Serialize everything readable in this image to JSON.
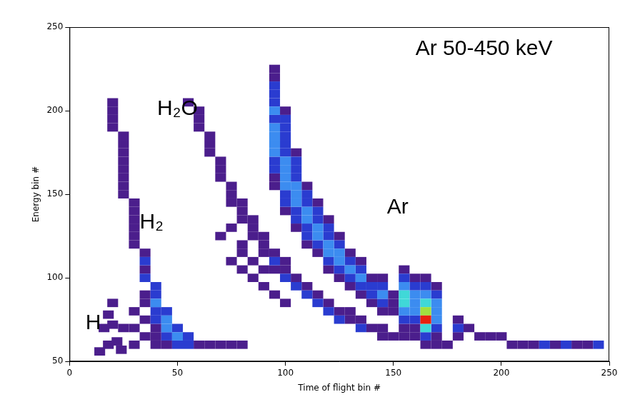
{
  "chart_data": {
    "type": "heatmap",
    "x_label": "Time of flight bin #",
    "y_label": "Energy bin #",
    "xlim": [
      0,
      250
    ],
    "xticks": [
      0,
      50,
      100,
      150,
      200,
      250
    ],
    "ylim": [
      50,
      250
    ],
    "yticks": [
      50,
      100,
      150,
      200,
      250
    ],
    "grid": false,
    "cell_size": [
      5,
      5
    ],
    "levels": [
      1,
      2,
      3,
      4,
      5,
      6
    ],
    "colors": [
      "#4b1e8c",
      "#2a3cd0",
      "#3c8cf0",
      "#40d8d8",
      "#a0e040",
      "#e82010"
    ],
    "annotations": [
      {
        "text": "H",
        "x": 11,
        "y": 73
      },
      {
        "text": "H₂",
        "x": 38,
        "y": 133
      },
      {
        "text": "H₂O",
        "x": 50,
        "y": 201
      },
      {
        "text": "Ar",
        "x": 152,
        "y": 142
      },
      {
        "text": "Ar 50-450 keV",
        "x": 192,
        "y": 237
      }
    ],
    "cells": [
      [
        20,
        85,
        1
      ],
      [
        18,
        78,
        1
      ],
      [
        16,
        70,
        1
      ],
      [
        20,
        72,
        1
      ],
      [
        22,
        62,
        1
      ],
      [
        18,
        60,
        1
      ],
      [
        14,
        56,
        1
      ],
      [
        24,
        57,
        1
      ],
      [
        20,
        205,
        1
      ],
      [
        20,
        200,
        1
      ],
      [
        20,
        195,
        1
      ],
      [
        20,
        190,
        1
      ],
      [
        25,
        185,
        1
      ],
      [
        25,
        180,
        1
      ],
      [
        25,
        175,
        1
      ],
      [
        25,
        170,
        1
      ],
      [
        25,
        165,
        1
      ],
      [
        25,
        160,
        1
      ],
      [
        25,
        155,
        1
      ],
      [
        25,
        150,
        1
      ],
      [
        30,
        145,
        1
      ],
      [
        30,
        140,
        1
      ],
      [
        30,
        135,
        1
      ],
      [
        30,
        130,
        1
      ],
      [
        30,
        125,
        1
      ],
      [
        30,
        120,
        1
      ],
      [
        35,
        115,
        1
      ],
      [
        35,
        110,
        2
      ],
      [
        35,
        105,
        1
      ],
      [
        35,
        100,
        2
      ],
      [
        40,
        95,
        2
      ],
      [
        40,
        90,
        2
      ],
      [
        40,
        85,
        3
      ],
      [
        45,
        80,
        2
      ],
      [
        45,
        75,
        3
      ],
      [
        50,
        70,
        2
      ],
      [
        50,
        65,
        3
      ],
      [
        55,
        65,
        2
      ],
      [
        55,
        60,
        2
      ],
      [
        60,
        60,
        1
      ],
      [
        65,
        60,
        1
      ],
      [
        70,
        60,
        1
      ],
      [
        75,
        60,
        1
      ],
      [
        80,
        60,
        1
      ],
      [
        35,
        90,
        1
      ],
      [
        35,
        85,
        1
      ],
      [
        40,
        80,
        2
      ],
      [
        40,
        75,
        2
      ],
      [
        45,
        70,
        3
      ],
      [
        45,
        65,
        2
      ],
      [
        40,
        70,
        1
      ],
      [
        50,
        60,
        2
      ],
      [
        45,
        60,
        1
      ],
      [
        40,
        65,
        1
      ],
      [
        35,
        75,
        1
      ],
      [
        30,
        80,
        1
      ],
      [
        30,
        70,
        1
      ],
      [
        35,
        65,
        1
      ],
      [
        25,
        70,
        1
      ],
      [
        30,
        60,
        1
      ],
      [
        40,
        60,
        1
      ],
      [
        55,
        205,
        1
      ],
      [
        60,
        200,
        1
      ],
      [
        60,
        195,
        1
      ],
      [
        60,
        190,
        1
      ],
      [
        65,
        185,
        1
      ],
      [
        65,
        180,
        1
      ],
      [
        65,
        175,
        1
      ],
      [
        70,
        170,
        1
      ],
      [
        70,
        165,
        1
      ],
      [
        70,
        160,
        1
      ],
      [
        75,
        155,
        1
      ],
      [
        75,
        150,
        1
      ],
      [
        75,
        145,
        1
      ],
      [
        80,
        145,
        1
      ],
      [
        80,
        140,
        1
      ],
      [
        80,
        135,
        1
      ],
      [
        85,
        135,
        1
      ],
      [
        85,
        130,
        1
      ],
      [
        85,
        125,
        1
      ],
      [
        90,
        125,
        1
      ],
      [
        90,
        120,
        1
      ],
      [
        90,
        115,
        1
      ],
      [
        95,
        115,
        1
      ],
      [
        95,
        110,
        2
      ],
      [
        95,
        105,
        1
      ],
      [
        100,
        110,
        1
      ],
      [
        100,
        105,
        1
      ],
      [
        100,
        100,
        2
      ],
      [
        105,
        100,
        1
      ],
      [
        105,
        95,
        2
      ],
      [
        110,
        95,
        1
      ],
      [
        110,
        90,
        2
      ],
      [
        115,
        90,
        1
      ],
      [
        115,
        85,
        2
      ],
      [
        120,
        85,
        1
      ],
      [
        120,
        80,
        2
      ],
      [
        125,
        80,
        1
      ],
      [
        125,
        75,
        2
      ],
      [
        130,
        80,
        1
      ],
      [
        130,
        75,
        1
      ],
      [
        135,
        75,
        1
      ],
      [
        135,
        70,
        2
      ],
      [
        140,
        70,
        1
      ],
      [
        145,
        70,
        1
      ],
      [
        145,
        65,
        1
      ],
      [
        150,
        65,
        1
      ],
      [
        155,
        65,
        1
      ],
      [
        160,
        65,
        1
      ],
      [
        165,
        60,
        1
      ],
      [
        170,
        60,
        1
      ],
      [
        175,
        60,
        1
      ],
      [
        75,
        110,
        1
      ],
      [
        80,
        105,
        1
      ],
      [
        85,
        100,
        1
      ],
      [
        90,
        95,
        1
      ],
      [
        95,
        90,
        1
      ],
      [
        100,
        85,
        1
      ],
      [
        85,
        110,
        1
      ],
      [
        80,
        120,
        1
      ],
      [
        90,
        105,
        1
      ],
      [
        70,
        125,
        1
      ],
      [
        75,
        130,
        1
      ],
      [
        80,
        115,
        1
      ],
      [
        95,
        225,
        1
      ],
      [
        95,
        220,
        1
      ],
      [
        95,
        215,
        2
      ],
      [
        95,
        210,
        2
      ],
      [
        95,
        205,
        2
      ],
      [
        95,
        200,
        3
      ],
      [
        95,
        195,
        2
      ],
      [
        95,
        190,
        3
      ],
      [
        95,
        185,
        3
      ],
      [
        95,
        180,
        3
      ],
      [
        95,
        175,
        3
      ],
      [
        95,
        170,
        2
      ],
      [
        95,
        165,
        2
      ],
      [
        95,
        160,
        1
      ],
      [
        95,
        155,
        1
      ],
      [
        100,
        200,
        1
      ],
      [
        100,
        195,
        2
      ],
      [
        100,
        190,
        2
      ],
      [
        100,
        185,
        2
      ],
      [
        100,
        180,
        2
      ],
      [
        100,
        175,
        2
      ],
      [
        100,
        170,
        3
      ],
      [
        100,
        165,
        3
      ],
      [
        100,
        160,
        3
      ],
      [
        100,
        155,
        3
      ],
      [
        100,
        150,
        2
      ],
      [
        100,
        145,
        2
      ],
      [
        100,
        140,
        1
      ],
      [
        105,
        175,
        1
      ],
      [
        105,
        170,
        2
      ],
      [
        105,
        165,
        2
      ],
      [
        105,
        160,
        2
      ],
      [
        105,
        155,
        3
      ],
      [
        105,
        150,
        3
      ],
      [
        105,
        145,
        3
      ],
      [
        105,
        140,
        2
      ],
      [
        105,
        135,
        2
      ],
      [
        105,
        130,
        1
      ],
      [
        110,
        155,
        1
      ],
      [
        110,
        150,
        2
      ],
      [
        110,
        145,
        2
      ],
      [
        110,
        140,
        3
      ],
      [
        110,
        135,
        3
      ],
      [
        110,
        130,
        2
      ],
      [
        110,
        125,
        2
      ],
      [
        110,
        120,
        1
      ],
      [
        115,
        145,
        1
      ],
      [
        115,
        140,
        2
      ],
      [
        115,
        135,
        2
      ],
      [
        115,
        130,
        3
      ],
      [
        115,
        125,
        3
      ],
      [
        115,
        120,
        2
      ],
      [
        115,
        115,
        1
      ],
      [
        120,
        135,
        1
      ],
      [
        120,
        130,
        2
      ],
      [
        120,
        125,
        2
      ],
      [
        120,
        120,
        3
      ],
      [
        120,
        115,
        3
      ],
      [
        120,
        110,
        2
      ],
      [
        120,
        105,
        1
      ],
      [
        125,
        125,
        1
      ],
      [
        125,
        120,
        2
      ],
      [
        125,
        115,
        3
      ],
      [
        125,
        110,
        3
      ],
      [
        125,
        105,
        2
      ],
      [
        125,
        100,
        1
      ],
      [
        130,
        115,
        1
      ],
      [
        130,
        110,
        2
      ],
      [
        130,
        105,
        3
      ],
      [
        130,
        100,
        2
      ],
      [
        130,
        95,
        1
      ],
      [
        135,
        110,
        1
      ],
      [
        135,
        105,
        2
      ],
      [
        135,
        100,
        3
      ],
      [
        135,
        95,
        2
      ],
      [
        135,
        90,
        1
      ],
      [
        140,
        100,
        1
      ],
      [
        140,
        95,
        2
      ],
      [
        140,
        90,
        2
      ],
      [
        140,
        85,
        1
      ],
      [
        145,
        100,
        1
      ],
      [
        145,
        95,
        2
      ],
      [
        145,
        90,
        3
      ],
      [
        145,
        85,
        2
      ],
      [
        145,
        80,
        1
      ],
      [
        150,
        90,
        1
      ],
      [
        150,
        85,
        1
      ],
      [
        150,
        80,
        1
      ],
      [
        155,
        105,
        1
      ],
      [
        155,
        100,
        2
      ],
      [
        155,
        95,
        3
      ],
      [
        155,
        90,
        4
      ],
      [
        155,
        85,
        4
      ],
      [
        155,
        80,
        3
      ],
      [
        155,
        75,
        2
      ],
      [
        155,
        70,
        1
      ],
      [
        160,
        100,
        1
      ],
      [
        160,
        95,
        2
      ],
      [
        160,
        90,
        3
      ],
      [
        160,
        85,
        3
      ],
      [
        160,
        80,
        3
      ],
      [
        160,
        75,
        2
      ],
      [
        160,
        70,
        1
      ],
      [
        165,
        100,
        1
      ],
      [
        165,
        95,
        2
      ],
      [
        165,
        90,
        3
      ],
      [
        165,
        85,
        4
      ],
      [
        165,
        80,
        5
      ],
      [
        165,
        75,
        6
      ],
      [
        165,
        70,
        4
      ],
      [
        165,
        65,
        2
      ],
      [
        170,
        95,
        1
      ],
      [
        170,
        90,
        2
      ],
      [
        170,
        85,
        3
      ],
      [
        170,
        80,
        3
      ],
      [
        170,
        75,
        3
      ],
      [
        170,
        70,
        2
      ],
      [
        170,
        65,
        1
      ],
      [
        180,
        75,
        1
      ],
      [
        180,
        70,
        2
      ],
      [
        180,
        65,
        1
      ],
      [
        185,
        70,
        1
      ],
      [
        190,
        65,
        1
      ],
      [
        195,
        65,
        1
      ],
      [
        200,
        65,
        1
      ],
      [
        205,
        60,
        1
      ],
      [
        210,
        60,
        1
      ],
      [
        215,
        60,
        1
      ],
      [
        220,
        60,
        2
      ],
      [
        225,
        60,
        1
      ],
      [
        230,
        60,
        2
      ],
      [
        235,
        60,
        1
      ],
      [
        240,
        60,
        1
      ],
      [
        245,
        60,
        2
      ]
    ]
  }
}
